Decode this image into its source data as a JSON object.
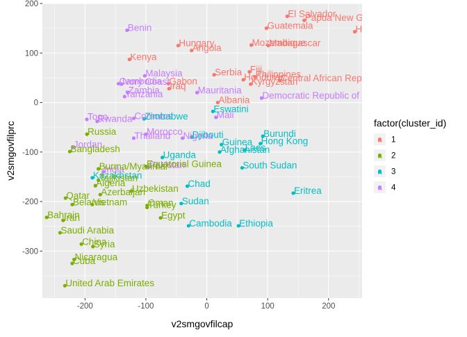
{
  "chart_data": {
    "type": "scatter",
    "xlabel": "v2smgovfilcap",
    "ylabel": "v2smgovfilprc",
    "xlim": [
      -270,
      255
    ],
    "ylim": [
      -395,
      200
    ],
    "x_ticks": [
      -200,
      -100,
      0,
      100,
      200
    ],
    "y_ticks": [
      -300,
      -200,
      -100,
      0,
      100,
      200
    ],
    "x_tick_labels": [
      "-200",
      "-100",
      "0",
      "100",
      "200"
    ],
    "y_tick_labels": [
      "-300",
      "-200",
      "-100",
      "0",
      "100",
      "200"
    ],
    "grid": true,
    "legend": {
      "title": "factor(cluster_id)",
      "placement": "right",
      "entries": [
        {
          "id": "1",
          "label": "1",
          "color": "#F8766D"
        },
        {
          "id": "2",
          "label": "2",
          "color": "#7CAE00"
        },
        {
          "id": "3",
          "label": "3",
          "color": "#00BFC4"
        },
        {
          "id": "4",
          "label": "4",
          "color": "#C77CFF"
        }
      ]
    },
    "points": [
      {
        "label": "El Salvador",
        "x": 132,
        "y": 174,
        "cluster": "1"
      },
      {
        "label": "Papua New Guinea",
        "x": 160,
        "y": 166,
        "cluster": "1"
      },
      {
        "label": "Haiti",
        "x": 243,
        "y": 143,
        "cluster": "1"
      },
      {
        "label": "Guatemala",
        "x": 98,
        "y": 150,
        "cluster": "1"
      },
      {
        "label": "Mozambique",
        "x": 73,
        "y": 116,
        "cluster": "1"
      },
      {
        "label": "Madagascar",
        "x": 101,
        "y": 115,
        "cluster": "1"
      },
      {
        "label": "Hungary",
        "x": -47,
        "y": 115,
        "cluster": "1"
      },
      {
        "label": "Angola",
        "x": -25,
        "y": 105,
        "cluster": "1"
      },
      {
        "label": "Kenya",
        "x": -127,
        "y": 87,
        "cluster": "1"
      },
      {
        "label": "Serbia",
        "x": 12,
        "y": 56,
        "cluster": "1"
      },
      {
        "label": "Fiji",
        "x": 70,
        "y": 62,
        "cluster": "1"
      },
      {
        "label": "Philippines",
        "x": 79,
        "y": 52,
        "cluster": "1"
      },
      {
        "label": "Honduras",
        "x": 60,
        "y": 46,
        "cluster": "1"
      },
      {
        "label": "Central African Republic",
        "x": 120,
        "y": 44,
        "cluster": "1"
      },
      {
        "label": "Kyrgyzstan",
        "x": 72,
        "y": 37,
        "cluster": "1"
      },
      {
        "label": "Gabon",
        "x": -63,
        "y": 38,
        "cluster": "1"
      },
      {
        "label": "Iraq",
        "x": -62,
        "y": 28,
        "cluster": "1"
      },
      {
        "label": "Albania",
        "x": 18,
        "y": 0,
        "cluster": "1"
      },
      {
        "label": "Benin",
        "x": -131,
        "y": 146,
        "cluster": "4"
      },
      {
        "label": "Malaysia",
        "x": -102,
        "y": 54,
        "cluster": "4"
      },
      {
        "label": "Cambodia",
        "x": -145,
        "y": 38,
        "cluster": "4"
      },
      {
        "label": "Ivory Coast",
        "x": -140,
        "y": 37,
        "cluster": "4"
      },
      {
        "label": "Mauritania",
        "x": -16,
        "y": 20,
        "cluster": "4"
      },
      {
        "label": "Zambia",
        "x": -130,
        "y": 20,
        "cluster": "4"
      },
      {
        "label": "Tanzania",
        "x": -135,
        "y": 12,
        "cluster": "4"
      },
      {
        "label": "Democratic Republic of the Congo",
        "x": 90,
        "y": 9,
        "cluster": "4"
      },
      {
        "label": "Mali",
        "x": 15,
        "y": -30,
        "cluster": "4"
      },
      {
        "label": "Togo",
        "x": -197,
        "y": -34,
        "cluster": "4"
      },
      {
        "label": "Rwanda",
        "x": -180,
        "y": -38,
        "cluster": "4"
      },
      {
        "label": "Comoros",
        "x": -120,
        "y": -32,
        "cluster": "4"
      },
      {
        "label": "Morocco",
        "x": -100,
        "y": -64,
        "cluster": "4"
      },
      {
        "label": "Thailand",
        "x": -120,
        "y": -72,
        "cluster": "4"
      },
      {
        "label": "Nigeria",
        "x": -40,
        "y": -72,
        "cluster": "4"
      },
      {
        "label": "Jordan",
        "x": -220,
        "y": -90,
        "cluster": "4"
      },
      {
        "label": "India",
        "x": -170,
        "y": -140,
        "cluster": "4"
      },
      {
        "label": "Pakistan",
        "x": -96,
        "y": -131,
        "cluster": "4"
      },
      {
        "label": "Eswatini",
        "x": 10,
        "y": -18,
        "cluster": "3"
      },
      {
        "label": "Zimbabwe",
        "x": -103,
        "y": -33,
        "cluster": "3"
      },
      {
        "label": "Djibouti",
        "x": -25,
        "y": -70,
        "cluster": "3"
      },
      {
        "label": "Burundi",
        "x": 92,
        "y": -68,
        "cluster": "3"
      },
      {
        "label": "Hong Kong",
        "x": 88,
        "y": -83,
        "cluster": "3"
      },
      {
        "label": "Guinea",
        "x": 24,
        "y": -85,
        "cluster": "3"
      },
      {
        "label": "Laos",
        "x": 62,
        "y": -96,
        "cluster": "3"
      },
      {
        "label": "Afghanistan",
        "x": 21,
        "y": -100,
        "cluster": "3"
      },
      {
        "label": "Uganda",
        "x": -73,
        "y": -111,
        "cluster": "3"
      },
      {
        "label": "South Sudan",
        "x": 58,
        "y": -132,
        "cluster": "3"
      },
      {
        "label": "Kazakhstan",
        "x": -188,
        "y": -152,
        "cluster": "3"
      },
      {
        "label": "Chad",
        "x": -32,
        "y": -169,
        "cluster": "3"
      },
      {
        "label": "Eritrea",
        "x": 142,
        "y": -183,
        "cluster": "3"
      },
      {
        "label": "Sudan",
        "x": -42,
        "y": -204,
        "cluster": "3"
      },
      {
        "label": "Cambodia",
        "x": -30,
        "y": -249,
        "cluster": "3"
      },
      {
        "label": "Ethiopia",
        "x": 52,
        "y": -249,
        "cluster": "3"
      },
      {
        "label": "Russia",
        "x": -197,
        "y": -64,
        "cluster": "2"
      },
      {
        "label": "Bangladesh",
        "x": -225,
        "y": -99,
        "cluster": "2"
      },
      {
        "label": "Burma/Myanmar",
        "x": -178,
        "y": -134,
        "cluster": "2"
      },
      {
        "label": "Equatorial Guinea",
        "x": -100,
        "y": -129,
        "cluster": "2"
      },
      {
        "label": "Tajikistan",
        "x": -178,
        "y": -157,
        "cluster": "2"
      },
      {
        "label": "Algeria",
        "x": -183,
        "y": -168,
        "cluster": "2"
      },
      {
        "label": "Uzbekistan",
        "x": -124,
        "y": -179,
        "cluster": "2"
      },
      {
        "label": "Azerbaijan",
        "x": -175,
        "y": -186,
        "cluster": "2"
      },
      {
        "label": "Qatar",
        "x": -232,
        "y": -193,
        "cluster": "2"
      },
      {
        "label": "Belarus",
        "x": -221,
        "y": -206,
        "cluster": "2"
      },
      {
        "label": "Vietnam",
        "x": -188,
        "y": -206,
        "cluster": "2"
      },
      {
        "label": "Oman",
        "x": -98,
        "y": -208,
        "cluster": "2"
      },
      {
        "label": "Turkey",
        "x": -98,
        "y": -212,
        "cluster": "2"
      },
      {
        "label": "Bahrain",
        "x": -263,
        "y": -232,
        "cluster": "2"
      },
      {
        "label": "Iran",
        "x": -236,
        "y": -238,
        "cluster": "2"
      },
      {
        "label": "Egypt",
        "x": -76,
        "y": -233,
        "cluster": "2"
      },
      {
        "label": "Saudi Arabia",
        "x": -241,
        "y": -263,
        "cluster": "2"
      },
      {
        "label": "China",
        "x": -206,
        "y": -286,
        "cluster": "2"
      },
      {
        "label": "Syria",
        "x": -187,
        "y": -291,
        "cluster": "2"
      },
      {
        "label": "Nicaragua",
        "x": -218,
        "y": -317,
        "cluster": "2"
      },
      {
        "label": "Cuba",
        "x": -221,
        "y": -325,
        "cluster": "2"
      },
      {
        "label": "United Arab Emirates",
        "x": -233,
        "y": -370,
        "cluster": "2"
      }
    ]
  }
}
